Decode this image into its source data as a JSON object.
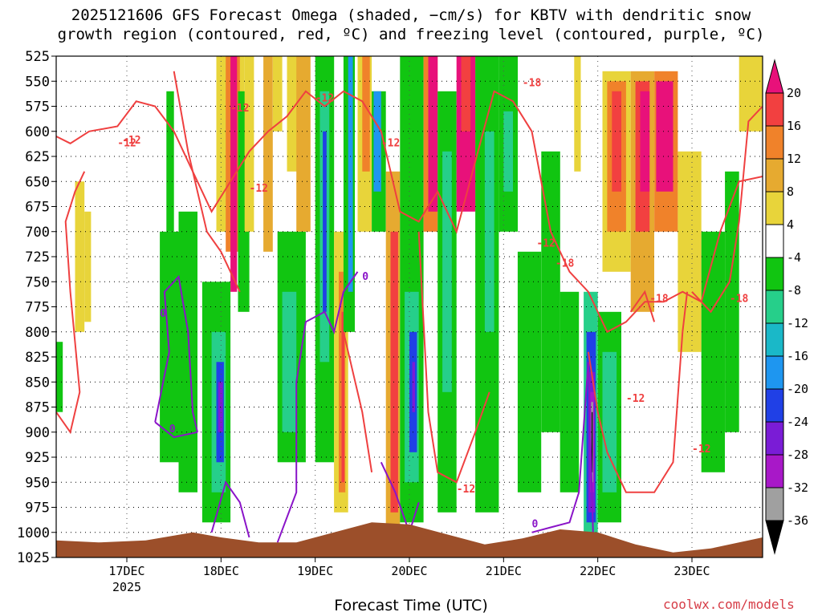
{
  "chart_data": {
    "type": "heatmap",
    "title_line1": "2025121606 GFS Forecast Omega (shaded, −cm/s) for KBTV with dendritic snow",
    "title_line2": "growth region (contoured, red, ºC) and freezing level (contoured, purple, ºC)",
    "xlabel": "Forecast Time (UTC)",
    "ylabel": "",
    "y_levels": [
      525,
      550,
      575,
      600,
      625,
      650,
      675,
      700,
      725,
      750,
      775,
      800,
      825,
      850,
      875,
      900,
      925,
      950,
      975,
      1000,
      1025
    ],
    "ylim": [
      525,
      1025
    ],
    "x_ticks": [
      "17DEC",
      "18DEC",
      "19DEC",
      "20DEC",
      "21DEC",
      "22DEC",
      "23DEC"
    ],
    "x_year_label": "2025",
    "x_range_days": [
      16.25,
      23.75
    ],
    "colorbar": {
      "levels": [
        20,
        16,
        12,
        8,
        4,
        -4,
        -8,
        -12,
        -16,
        -20,
        -24,
        -28,
        -32,
        -36
      ],
      "colors": [
        "#e8117a",
        "#f24040",
        "#f0822a",
        "#e6aa30",
        "#e8d43a",
        "#ffffff",
        "#11c511",
        "#26cf8a",
        "#1ab8c8",
        "#1e96f0",
        "#2040e6",
        "#7a1cd6",
        "#a818c8",
        "#a0a0a0",
        "#000000"
      ]
    },
    "contour_labels_red": [
      "-12",
      "-12",
      "-12",
      "-12",
      "-12",
      "-12",
      "-12",
      "-12",
      "-18",
      "-18",
      "-18",
      "-18",
      "-12",
      "-12"
    ],
    "contour_labels_purple": [
      "0",
      "0",
      "0",
      "0"
    ],
    "freezing_contour_value": 0,
    "dgz_contour_values": [
      -12,
      -18
    ],
    "credit": "coolwx.com/models"
  }
}
